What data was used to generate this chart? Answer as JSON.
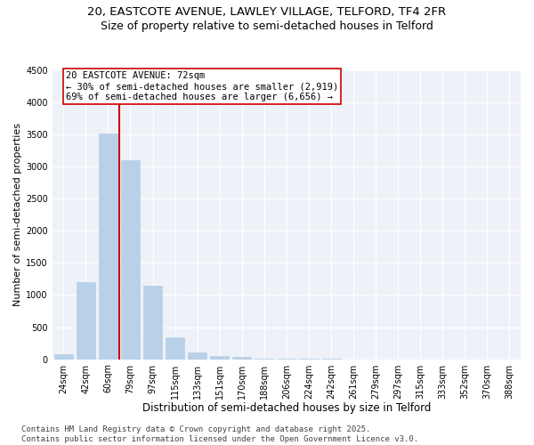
{
  "title_line1": "20, EASTCOTE AVENUE, LAWLEY VILLAGE, TELFORD, TF4 2FR",
  "title_line2": "Size of property relative to semi-detached houses in Telford",
  "xlabel": "Distribution of semi-detached houses by size in Telford",
  "ylabel": "Number of semi-detached properties",
  "categories": [
    "24sqm",
    "42sqm",
    "60sqm",
    "79sqm",
    "97sqm",
    "115sqm",
    "133sqm",
    "151sqm",
    "170sqm",
    "188sqm",
    "206sqm",
    "224sqm",
    "242sqm",
    "261sqm",
    "279sqm",
    "297sqm",
    "315sqm",
    "333sqm",
    "352sqm",
    "370sqm",
    "388sqm"
  ],
  "values": [
    80,
    1200,
    3520,
    3100,
    1150,
    340,
    100,
    50,
    30,
    15,
    8,
    4,
    2,
    1,
    0,
    0,
    0,
    0,
    0,
    0,
    0
  ],
  "bar_color": "#b8d0e8",
  "bar_edge_color": "#b8d0e8",
  "vline_color": "#cc0000",
  "annotation_text": "20 EASTCOTE AVENUE: 72sqm\n← 30% of semi-detached houses are smaller (2,919)\n69% of semi-detached houses are larger (6,656) →",
  "annotation_box_color": "#ffffff",
  "annotation_box_edge": "#cc0000",
  "ylim": [
    0,
    4500
  ],
  "yticks": [
    0,
    500,
    1000,
    1500,
    2000,
    2500,
    3000,
    3500,
    4000,
    4500
  ],
  "bg_color": "#eef2f8",
  "footer_line1": "Contains HM Land Registry data © Crown copyright and database right 2025.",
  "footer_line2": "Contains public sector information licensed under the Open Government Licence v3.0.",
  "title_fontsize": 9.5,
  "subtitle_fontsize": 9,
  "xlabel_fontsize": 8.5,
  "ylabel_fontsize": 8,
  "tick_fontsize": 7,
  "footer_fontsize": 6.5,
  "annot_fontsize": 7.5
}
